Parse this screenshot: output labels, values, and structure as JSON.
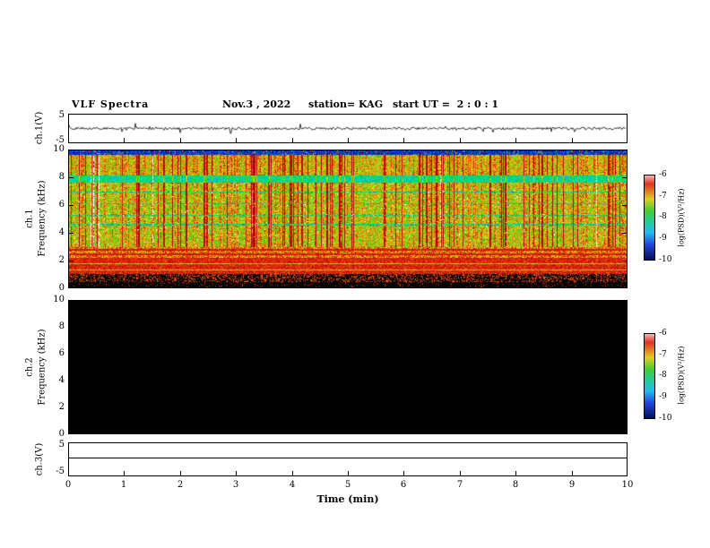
{
  "header": {
    "title": "VLF Spectra",
    "date": "Nov.3 , 2022",
    "station": "station= KAG",
    "start_ut": "start UT =  2 : 0 : 1"
  },
  "axes": {
    "x_label": "Time (min)",
    "x_ticks": [
      "0",
      "1",
      "2",
      "3",
      "4",
      "5",
      "6",
      "7",
      "8",
      "9",
      "10"
    ],
    "wave_ticks": [
      "5",
      "-5"
    ],
    "freq_ticks": [
      "10",
      "8",
      "6",
      "4",
      "2",
      "0"
    ],
    "ch1_wave_label": "ch.1(V)",
    "ch1_spec_label_1": "ch.1",
    "ch1_spec_label_2": "Frequency (kHz)",
    "ch2_spec_label_1": "ch.2",
    "ch2_spec_label_2": "Frequency (kHz)",
    "ch3_wave_label": "ch.3(V)"
  },
  "colorbar": {
    "ticks": [
      "-6",
      "-7",
      "-8",
      "-9",
      "-10"
    ],
    "label": "log(PSD)(V²/Hz)",
    "colors_top_to_bottom": [
      "#f5b5b5",
      "#e03322",
      "#ddcc22",
      "#44cc33",
      "#22cc99",
      "#22bbee",
      "#2244dd",
      "#041155"
    ]
  },
  "chart_data": [
    {
      "type": "line",
      "title": "ch.1 waveform",
      "xlabel": "Time (min)",
      "ylabel": "ch.1(V)",
      "xlim": [
        0,
        10
      ],
      "ylim": [
        -5,
        5
      ],
      "description": "Noisy broadband signal fluctuating around 0 V with small spikes of roughly ±1 to ±2 V across the full 10-minute record"
    },
    {
      "type": "heatmap",
      "title": "ch.1 VLF spectrogram",
      "xlabel": "Time (min)",
      "ylabel": "Frequency (kHz)",
      "xlim": [
        0,
        10
      ],
      "ylim": [
        0,
        10
      ],
      "zlabel": "log(PSD)(V²/Hz)",
      "zlim": [
        -10,
        -6
      ],
      "features": [
        "broadband green/yellow background (about -8 to -7) from 3 to 10 kHz",
        "dense vertical red streaks (sferics, about -6) throughout the record",
        "cyan/blue horizontal band near 8 kHz",
        "dark blue band along the 10 kHz top edge",
        "intense red/orange horizontal banding from about 1 to 3 kHz",
        "black band (below -10) under about 1 kHz",
        "a few thin dark horizontal lines between 4 and 7 kHz",
        "occasional white vertical data gaps"
      ]
    },
    {
      "type": "heatmap",
      "title": "ch.2 VLF spectrogram",
      "xlabel": "Time (min)",
      "ylabel": "Frequency (kHz)",
      "xlim": [
        0,
        10
      ],
      "ylim": [
        0,
        10
      ],
      "zlabel": "log(PSD)(V²/Hz)",
      "zlim": [
        -10,
        -6
      ],
      "features": [
        "no signal: entire panel is black (at or below -10) for the whole 0-10 min, 0-10 kHz range"
      ]
    },
    {
      "type": "line",
      "title": "ch.3 waveform",
      "xlabel": "Time (min)",
      "ylabel": "ch.3(V)",
      "xlim": [
        0,
        10
      ],
      "ylim": [
        -5,
        5
      ],
      "description": "Flat line at 0 V for the entire record"
    }
  ]
}
